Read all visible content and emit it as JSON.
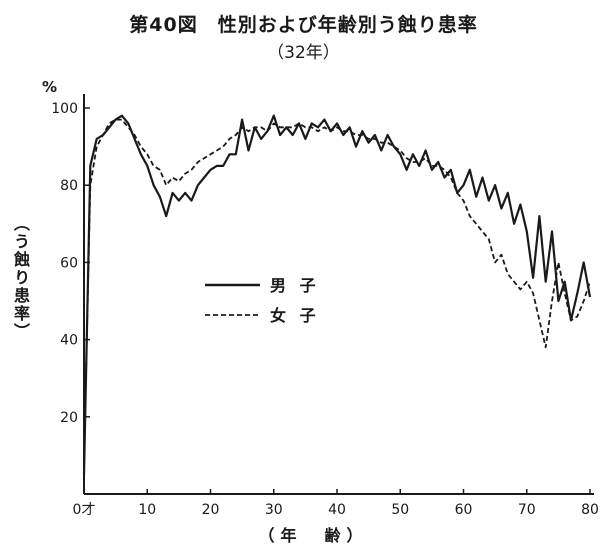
{
  "chart_data": {
    "type": "line",
    "title": "第40図　性別および年齢別う蝕り患率",
    "subtitle": "（32年）",
    "xlabel": "（年　齢）",
    "ylabel": "（う蝕り患率）",
    "yunit": "%",
    "xlim": [
      0,
      80
    ],
    "ylim": [
      0,
      100
    ],
    "x_ticks": [
      "0才",
      "10",
      "20",
      "30",
      "40",
      "50",
      "60",
      "70",
      "80"
    ],
    "x_tick_values": [
      0,
      10,
      20,
      30,
      40,
      50,
      60,
      70,
      80
    ],
    "y_ticks": [
      "20",
      "40",
      "60",
      "80",
      "100"
    ],
    "y_tick_values": [
      20,
      40,
      60,
      80,
      100
    ],
    "grid": false,
    "legend_position": "center-left",
    "series": [
      {
        "name": "男 子",
        "style": "solid",
        "color": "#1a1a1a",
        "x": [
          0,
          1,
          2,
          3,
          4,
          5,
          6,
          7,
          8,
          9,
          10,
          11,
          12,
          13,
          14,
          15,
          16,
          17,
          18,
          19,
          20,
          21,
          22,
          23,
          24,
          25,
          26,
          27,
          28,
          29,
          30,
          31,
          32,
          33,
          34,
          35,
          36,
          37,
          38,
          39,
          40,
          41,
          42,
          43,
          44,
          45,
          46,
          47,
          48,
          49,
          50,
          51,
          52,
          53,
          54,
          55,
          56,
          57,
          58,
          59,
          60,
          61,
          62,
          63,
          64,
          65,
          66,
          67,
          68,
          69,
          70,
          71,
          72,
          73,
          74,
          75,
          76,
          77,
          78,
          79,
          80
        ],
        "values": [
          5,
          85,
          92,
          93,
          95,
          97,
          98,
          96,
          92,
          88,
          85,
          80,
          77,
          72,
          78,
          76,
          78,
          76,
          80,
          82,
          84,
          85,
          85,
          88,
          88,
          97,
          89,
          95,
          92,
          94,
          98,
          93,
          95,
          93,
          96,
          92,
          96,
          95,
          97,
          94,
          96,
          93,
          95,
          90,
          94,
          91,
          93,
          89,
          93,
          90,
          88,
          84,
          88,
          85,
          89,
          84,
          86,
          82,
          84,
          78,
          80,
          84,
          77,
          82,
          76,
          80,
          74,
          78,
          70,
          75,
          68,
          56,
          72,
          55,
          68,
          50,
          55,
          45,
          52,
          60,
          51
        ]
      },
      {
        "name": "女 子",
        "style": "dashed",
        "color": "#1a1a1a",
        "x": [
          0,
          1,
          2,
          3,
          4,
          5,
          6,
          7,
          8,
          9,
          10,
          11,
          12,
          13,
          14,
          15,
          16,
          17,
          18,
          19,
          20,
          21,
          22,
          23,
          24,
          25,
          26,
          27,
          28,
          29,
          30,
          31,
          32,
          33,
          34,
          35,
          36,
          37,
          38,
          39,
          40,
          41,
          42,
          43,
          44,
          45,
          46,
          47,
          48,
          49,
          50,
          51,
          52,
          53,
          54,
          55,
          56,
          57,
          58,
          59,
          60,
          61,
          62,
          63,
          64,
          65,
          66,
          67,
          68,
          69,
          70,
          71,
          72,
          73,
          74,
          75,
          76,
          77,
          78,
          79,
          80
        ],
        "values": [
          8,
          80,
          90,
          93,
          96,
          97,
          97,
          95,
          93,
          90,
          88,
          85,
          84,
          80,
          82,
          81,
          83,
          84,
          86,
          87,
          88,
          89,
          90,
          92,
          93,
          95,
          94,
          95,
          95,
          94,
          96,
          95,
          95,
          95,
          96,
          95,
          95,
          94,
          95,
          94,
          95,
          94,
          94,
          93,
          93,
          92,
          92,
          91,
          91,
          90,
          89,
          87,
          86,
          86,
          87,
          85,
          85,
          84,
          82,
          78,
          76,
          72,
          70,
          68,
          66,
          60,
          62,
          57,
          55,
          53,
          55,
          52,
          45,
          38,
          50,
          60,
          52,
          45,
          46,
          50,
          55
        ]
      }
    ],
    "legend": [
      {
        "label": "男 子",
        "style": "solid"
      },
      {
        "label": "女 子",
        "style": "dashed"
      }
    ]
  }
}
